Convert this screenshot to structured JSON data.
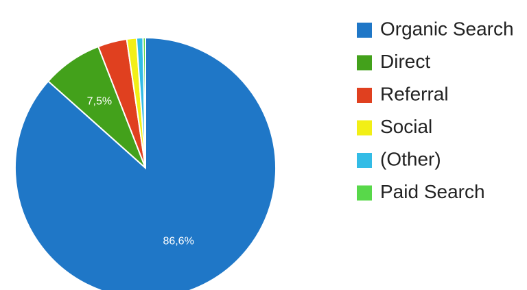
{
  "chart_data": {
    "type": "pie",
    "categories": [
      "Organic Search",
      "Direct",
      "Referral",
      "Social",
      "(Other)",
      "Paid Search"
    ],
    "values": [
      86.6,
      7.5,
      3.6,
      1.2,
      0.8,
      0.3
    ],
    "colors": [
      "#1f77c7",
      "#43a11b",
      "#e0401f",
      "#f2ef16",
      "#33bce6",
      "#58d84a"
    ],
    "slice_labels": [
      "86,6%",
      "7,5%",
      "",
      "",
      "",
      ""
    ],
    "legend_position": "right",
    "start_angle": "top",
    "direction": "clockwise"
  }
}
